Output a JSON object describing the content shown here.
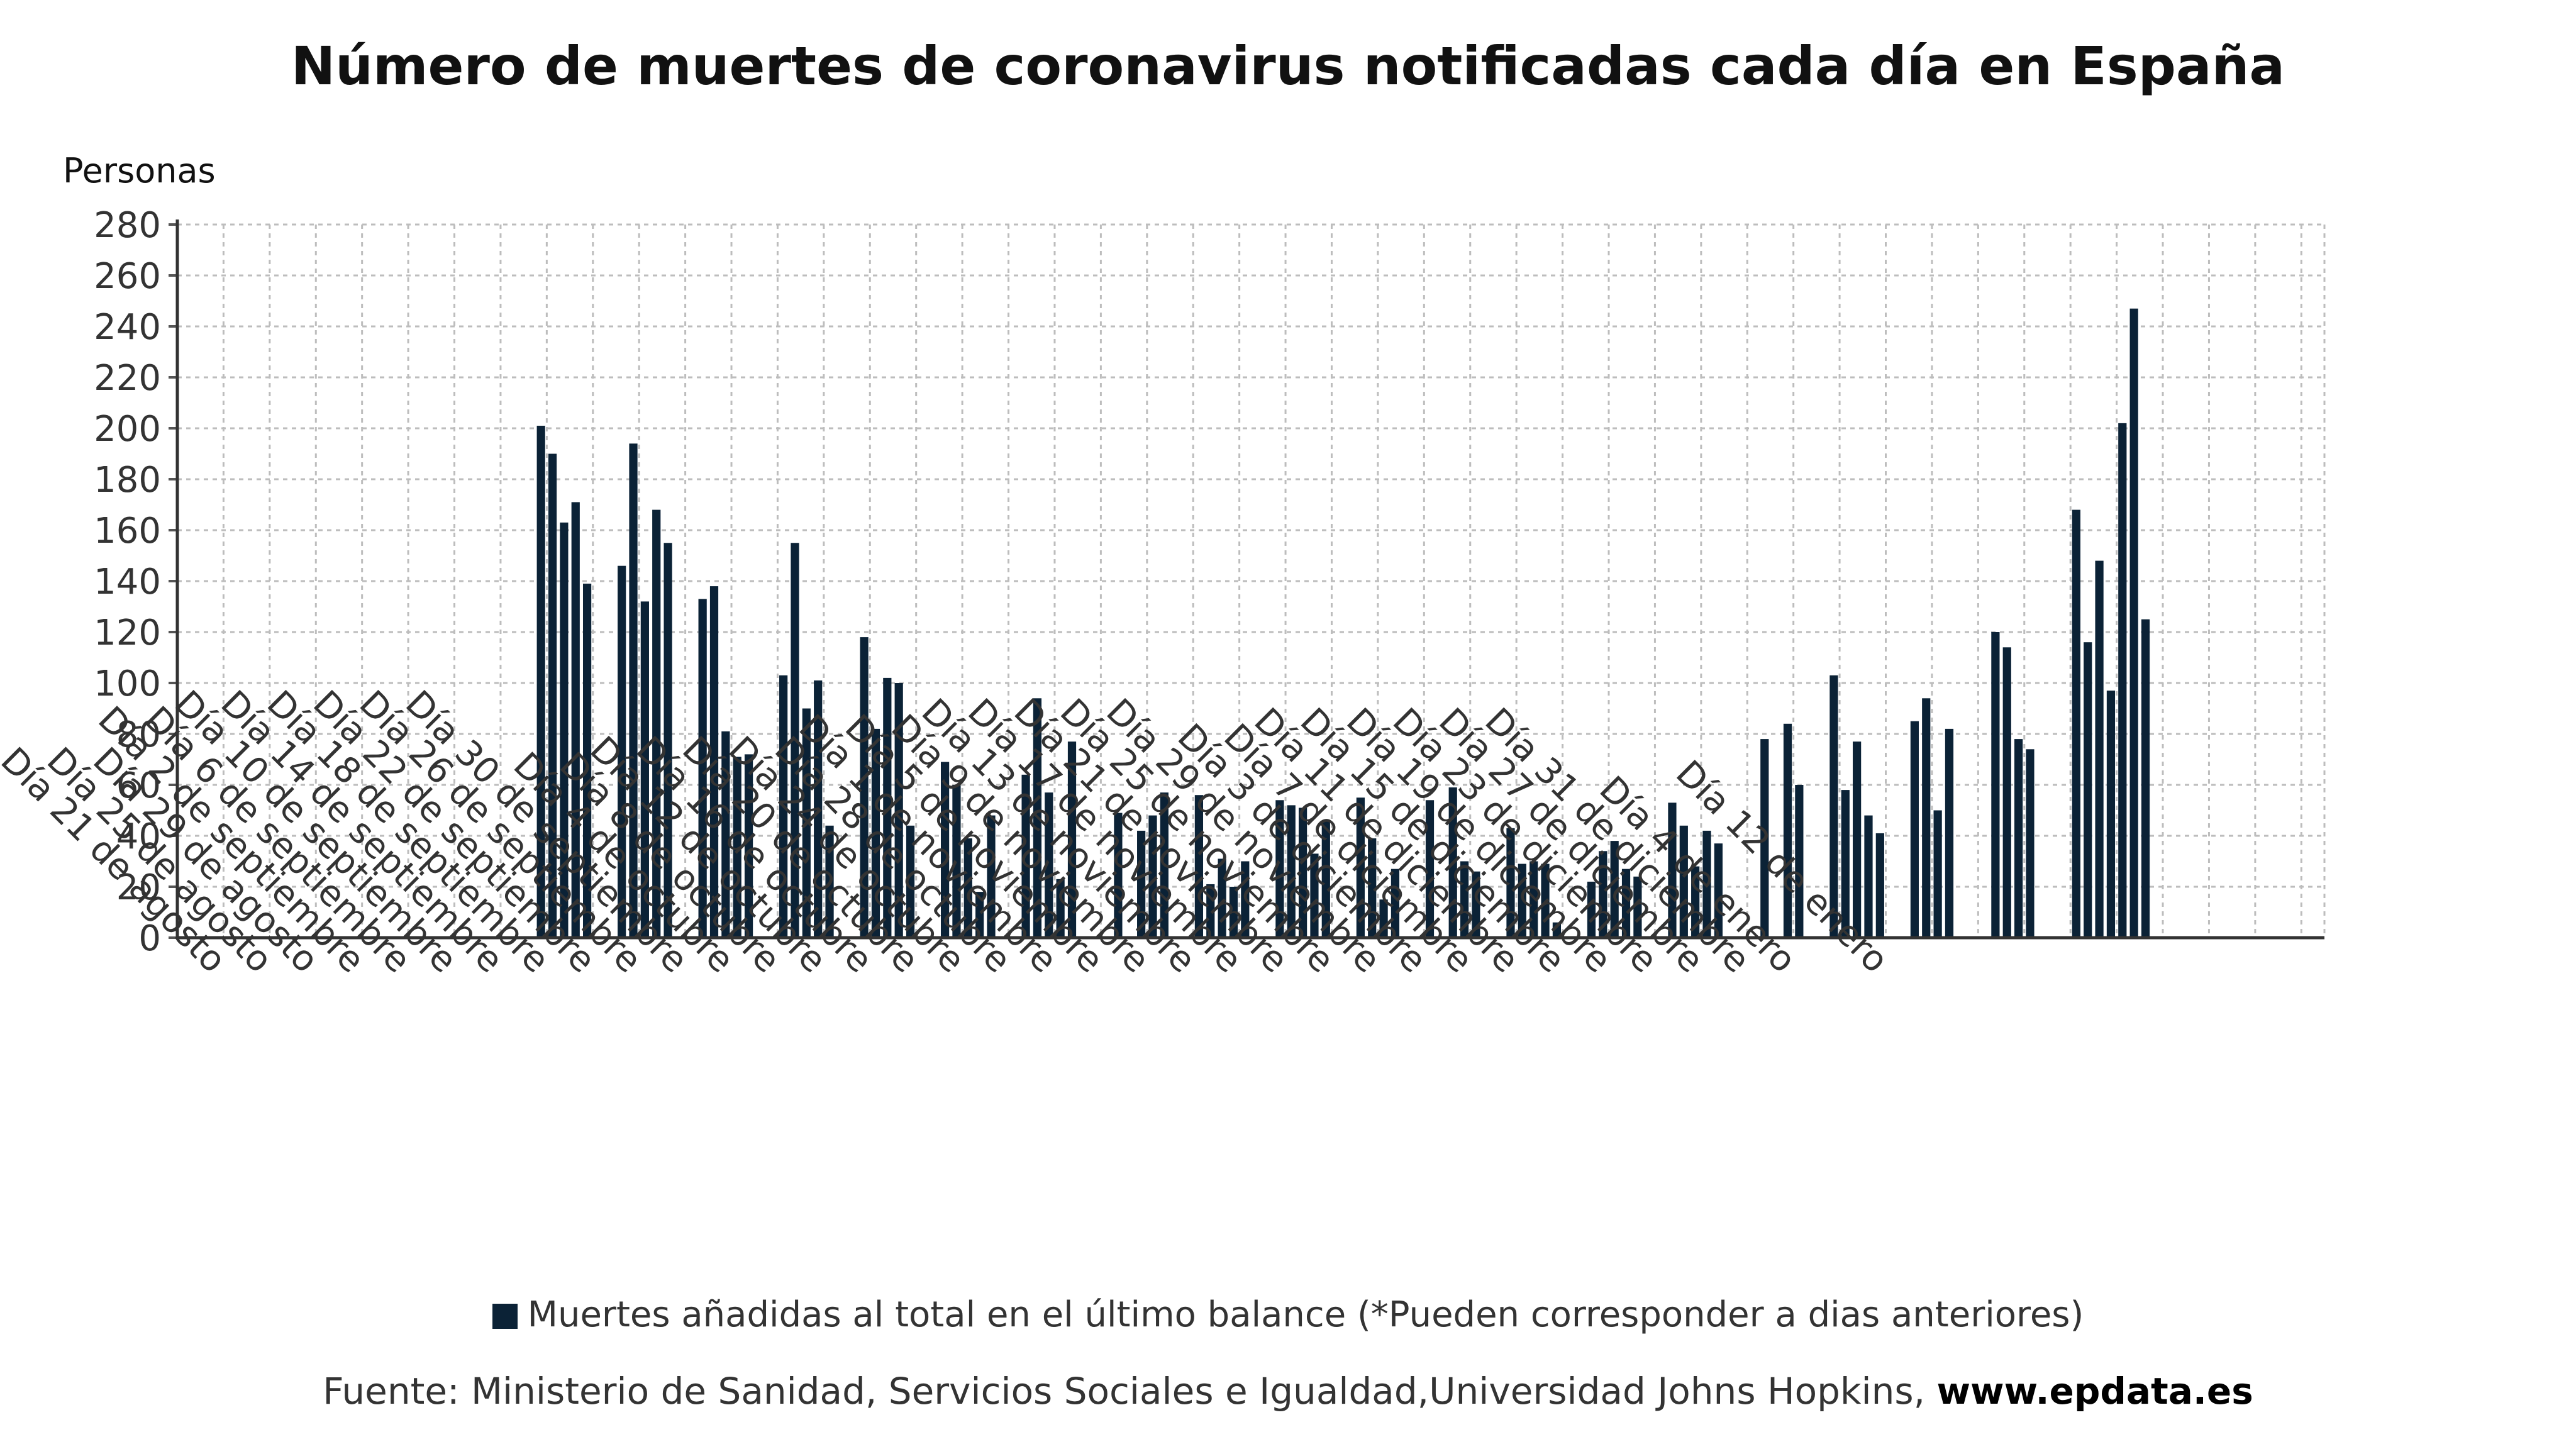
{
  "chart_data": {
    "type": "bar",
    "title": "Número de muertes de coronavirus notificadas cada día en España",
    "ylabel": "Personas",
    "xlabel": "",
    "ylim": [
      0,
      280
    ],
    "yticks": [
      0,
      20,
      40,
      60,
      80,
      100,
      120,
      140,
      160,
      180,
      200,
      220,
      240,
      260,
      280
    ],
    "grid": true,
    "legend_position": "bottom",
    "bar_color": "#0b2236",
    "start_date": "2020-08-17",
    "x_tick_labels": [
      "Día 21 de agosto",
      "Día 25 de agosto",
      "Día 29 de agosto",
      "Día 2 de septiembre",
      "Día 6 de septiembre",
      "Día 10 de septiembre",
      "Día 14 de septiembre",
      "Día 18 de septiembre",
      "Día 22 de septiembre",
      "Día 26 de septiembre",
      "Día 30 de septiembre",
      "Día 4 de octubre",
      "Día 8 de octubre",
      "Día 12 de octubre",
      "Día 16 de octubre",
      "Día 20 de octubre",
      "Día 24 de octubre",
      "Día 28 de octubre",
      "Día 1 de noviembre",
      "Día 5 de noviembre",
      "Día 9 de noviembre",
      "Día 13 de noviembre",
      "Día 17 de noviembre",
      "Día 21 de noviembre",
      "Día 25 de noviembre",
      "Día 29 de noviembre",
      "Día 3 de diciembre",
      "Día 7 de diciembre",
      "Día 11 de diciembre",
      "Día 15 de diciembre",
      "Día 19 de diciembre",
      "Día 23 de diciembre",
      "Día 27 de diciembre",
      "Día 31 de diciembre",
      "Día 4 de enero",
      "Día 12 de enero"
    ],
    "series": [
      {
        "name": "Muertes añadidas al total en el último balance (*Pueden corresponder a dias anteriores)",
        "values": [
          0,
          0,
          0,
          0,
          0,
          0,
          0,
          0,
          0,
          0,
          0,
          0,
          0,
          0,
          0,
          0,
          0,
          0,
          0,
          0,
          0,
          0,
          0,
          0,
          0,
          0,
          0,
          0,
          0,
          0,
          0,
          201,
          190,
          163,
          171,
          139,
          0,
          0,
          146,
          194,
          132,
          168,
          155,
          0,
          0,
          133,
          138,
          81,
          71,
          72,
          0,
          0,
          103,
          155,
          90,
          101,
          44,
          0,
          0,
          118,
          82,
          102,
          100,
          44,
          0,
          0,
          69,
          60,
          39,
          18,
          48,
          0,
          0,
          64,
          94,
          57,
          23,
          77,
          0,
          0,
          0,
          49,
          0,
          42,
          48,
          57,
          0,
          0,
          56,
          21,
          31,
          20,
          30,
          0,
          0,
          54,
          52,
          51,
          33,
          46,
          0,
          0,
          55,
          39,
          15,
          27,
          0,
          0,
          54,
          0,
          59,
          30,
          26,
          0,
          0,
          43,
          29,
          30,
          29,
          6,
          0,
          0,
          22,
          34,
          38,
          27,
          24,
          0,
          0,
          53,
          44,
          28,
          42,
          37,
          0,
          0,
          0,
          78,
          0,
          84,
          60,
          0,
          0,
          103,
          58,
          77,
          48,
          41,
          0,
          0,
          85,
          94,
          50,
          82,
          0,
          0,
          0,
          120,
          114,
          78,
          74,
          0,
          0,
          0,
          168,
          116,
          148,
          97,
          202,
          247,
          125,
          0,
          0,
          0,
          0,
          0,
          0,
          0,
          0,
          0,
          0,
          0,
          0,
          0,
          0,
          0
        ]
      }
    ]
  },
  "legend": {
    "label": "Muertes añadidas al total en el último balance (*Pueden corresponder a dias anteriores)"
  },
  "source": {
    "prefix": "Fuente: Ministerio de Sanidad, Servicios Sociales e Igualdad,Universidad Johns Hopkins, ",
    "url": "www.epdata.es"
  }
}
